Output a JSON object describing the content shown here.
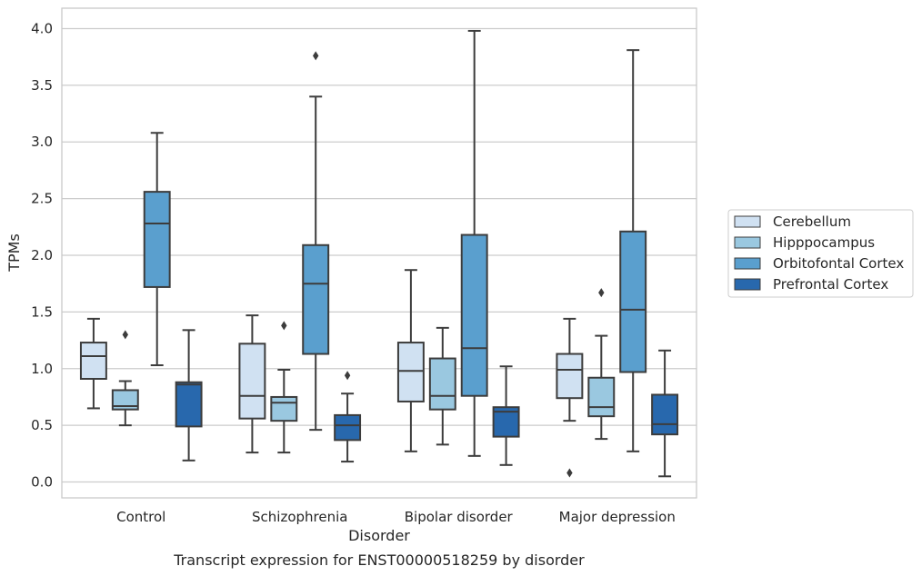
{
  "chart_data": {
    "type": "box",
    "title": "",
    "caption": "Transcript expression for ENST00000518259 by disorder",
    "xlabel": "Disorder",
    "ylabel": "TPMs",
    "ylim": [
      -0.14,
      4.18
    ],
    "yticks": [
      "0.0",
      "0.5",
      "1.0",
      "1.5",
      "2.0",
      "2.5",
      "3.0",
      "3.5",
      "4.0"
    ],
    "ytick_values": [
      0,
      0.5,
      1,
      1.5,
      2,
      2.5,
      3,
      3.5,
      4
    ],
    "categories": [
      "Control",
      "Schizophrenia",
      "Bipolar disorder",
      "Major depression"
    ],
    "grid": "horizontal",
    "legend_position": "right",
    "series": [
      {
        "name": "Cerebellum",
        "color": "#d0e1f2",
        "boxes": [
          {
            "whisker_low": 0.65,
            "q1": 0.91,
            "median": 1.11,
            "q3": 1.23,
            "whisker_high": 1.44,
            "outliers": []
          },
          {
            "whisker_low": 0.26,
            "q1": 0.56,
            "median": 0.76,
            "q3": 1.22,
            "whisker_high": 1.47,
            "outliers": []
          },
          {
            "whisker_low": 0.27,
            "q1": 0.71,
            "median": 0.98,
            "q3": 1.23,
            "whisker_high": 1.87,
            "outliers": []
          },
          {
            "whisker_low": 0.54,
            "q1": 0.74,
            "median": 0.99,
            "q3": 1.13,
            "whisker_high": 1.44,
            "outliers": [
              0.08
            ]
          }
        ]
      },
      {
        "name": "Hipppocampus",
        "color": "#9ac8e0",
        "boxes": [
          {
            "whisker_low": 0.5,
            "q1": 0.64,
            "median": 0.67,
            "q3": 0.81,
            "whisker_high": 0.89,
            "outliers": [
              1.3
            ]
          },
          {
            "whisker_low": 0.26,
            "q1": 0.54,
            "median": 0.7,
            "q3": 0.75,
            "whisker_high": 0.99,
            "outliers": [
              1.38
            ]
          },
          {
            "whisker_low": 0.33,
            "q1": 0.64,
            "median": 0.76,
            "q3": 1.09,
            "whisker_high": 1.36,
            "outliers": []
          },
          {
            "whisker_low": 0.38,
            "q1": 0.58,
            "median": 0.66,
            "q3": 0.92,
            "whisker_high": 1.29,
            "outliers": [
              1.67
            ]
          }
        ]
      },
      {
        "name": "Orbitofontal Cortex",
        "color": "#5a9fce",
        "boxes": [
          {
            "whisker_low": 1.03,
            "q1": 1.72,
            "median": 2.28,
            "q3": 2.56,
            "whisker_high": 3.08,
            "outliers": []
          },
          {
            "whisker_low": 0.46,
            "q1": 1.13,
            "median": 1.75,
            "q3": 2.09,
            "whisker_high": 3.4,
            "outliers": [
              3.76
            ]
          },
          {
            "whisker_low": 0.23,
            "q1": 0.76,
            "median": 1.18,
            "q3": 2.18,
            "whisker_high": 3.98,
            "outliers": []
          },
          {
            "whisker_low": 0.27,
            "q1": 0.97,
            "median": 1.52,
            "q3": 2.21,
            "whisker_high": 3.81,
            "outliers": []
          }
        ]
      },
      {
        "name": "Prefrontal Cortex",
        "color": "#2868ad",
        "boxes": [
          {
            "whisker_low": 0.19,
            "q1": 0.49,
            "median": 0.86,
            "q3": 0.88,
            "whisker_high": 1.34,
            "outliers": []
          },
          {
            "whisker_low": 0.18,
            "q1": 0.37,
            "median": 0.5,
            "q3": 0.59,
            "whisker_high": 0.78,
            "outliers": [
              0.94
            ]
          },
          {
            "whisker_low": 0.15,
            "q1": 0.4,
            "median": 0.62,
            "q3": 0.66,
            "whisker_high": 1.02,
            "outliers": []
          },
          {
            "whisker_low": 0.05,
            "q1": 0.42,
            "median": 0.51,
            "q3": 0.77,
            "whisker_high": 1.16,
            "outliers": []
          }
        ]
      }
    ],
    "line_color": "#3c3c3c",
    "grid_color": "#cccccc",
    "frame_color": "#c8c8c8"
  }
}
